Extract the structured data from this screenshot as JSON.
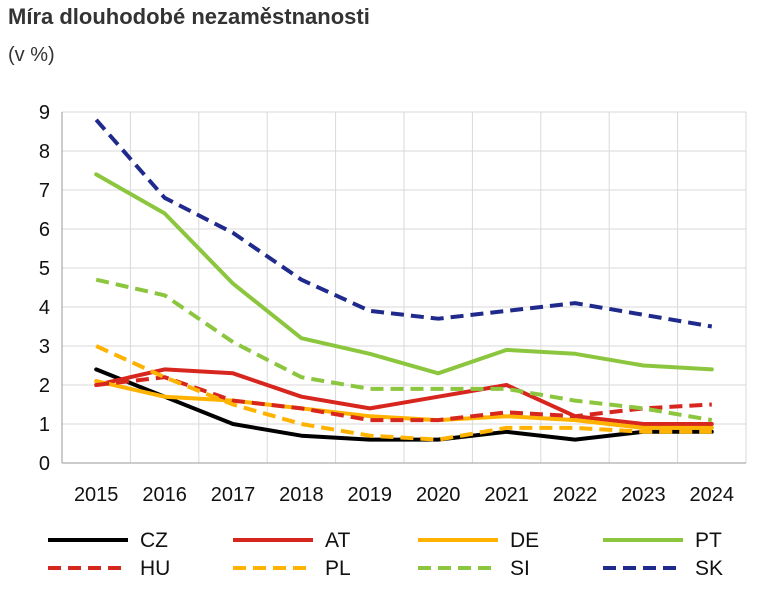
{
  "header": {
    "title": "Míra dlouhodobé nezaměstnanosti",
    "subtitle": "(v %)"
  },
  "chart_data": {
    "type": "line",
    "title": "Míra dlouhodobé nezaměstnanosti",
    "subtitle": "(v %)",
    "xlabel": "",
    "ylabel": "",
    "x": [
      "2015",
      "2016",
      "2017",
      "2018",
      "2019",
      "2020",
      "2021",
      "2022",
      "2023",
      "2024"
    ],
    "ylim": [
      0,
      9
    ],
    "yticks": [
      "0",
      "1",
      "2",
      "3",
      "4",
      "5",
      "6",
      "7",
      "8",
      "9"
    ],
    "grid": true,
    "legend_position": "bottom",
    "series": [
      {
        "name": "CZ",
        "color": "#000000",
        "dash": "solid",
        "values": [
          2.4,
          1.7,
          1.0,
          0.7,
          0.6,
          0.6,
          0.8,
          0.6,
          0.8,
          0.8
        ]
      },
      {
        "name": "AT",
        "color": "#d7261e",
        "dash": "solid",
        "values": [
          2.0,
          2.4,
          2.3,
          1.7,
          1.4,
          1.7,
          2.0,
          1.2,
          1.0,
          1.0
        ]
      },
      {
        "name": "DE",
        "color": "#ffb300",
        "dash": "solid",
        "values": [
          2.1,
          1.7,
          1.6,
          1.4,
          1.2,
          1.1,
          1.2,
          1.1,
          0.9,
          0.9
        ]
      },
      {
        "name": "PT",
        "color": "#8cc63f",
        "dash": "solid",
        "values": [
          7.4,
          6.4,
          4.6,
          3.2,
          2.8,
          2.3,
          2.9,
          2.8,
          2.5,
          2.4
        ]
      },
      {
        "name": "HU",
        "color": "#d7261e",
        "dash": "dashed",
        "values": [
          2.0,
          2.2,
          1.6,
          1.4,
          1.1,
          1.1,
          1.3,
          1.2,
          1.4,
          1.5
        ]
      },
      {
        "name": "PL",
        "color": "#ffb300",
        "dash": "dashed",
        "values": [
          3.0,
          2.2,
          1.5,
          1.0,
          0.7,
          0.6,
          0.9,
          0.9,
          0.8,
          0.8
        ]
      },
      {
        "name": "SI",
        "color": "#8cc63f",
        "dash": "dashed",
        "values": [
          4.7,
          4.3,
          3.1,
          2.2,
          1.9,
          1.9,
          1.9,
          1.6,
          1.4,
          1.1
        ]
      },
      {
        "name": "SK",
        "color": "#1f2a8c",
        "dash": "dashed",
        "values": [
          8.8,
          6.8,
          5.9,
          4.7,
          3.9,
          3.7,
          3.9,
          4.1,
          3.8,
          3.5
        ]
      }
    ]
  }
}
